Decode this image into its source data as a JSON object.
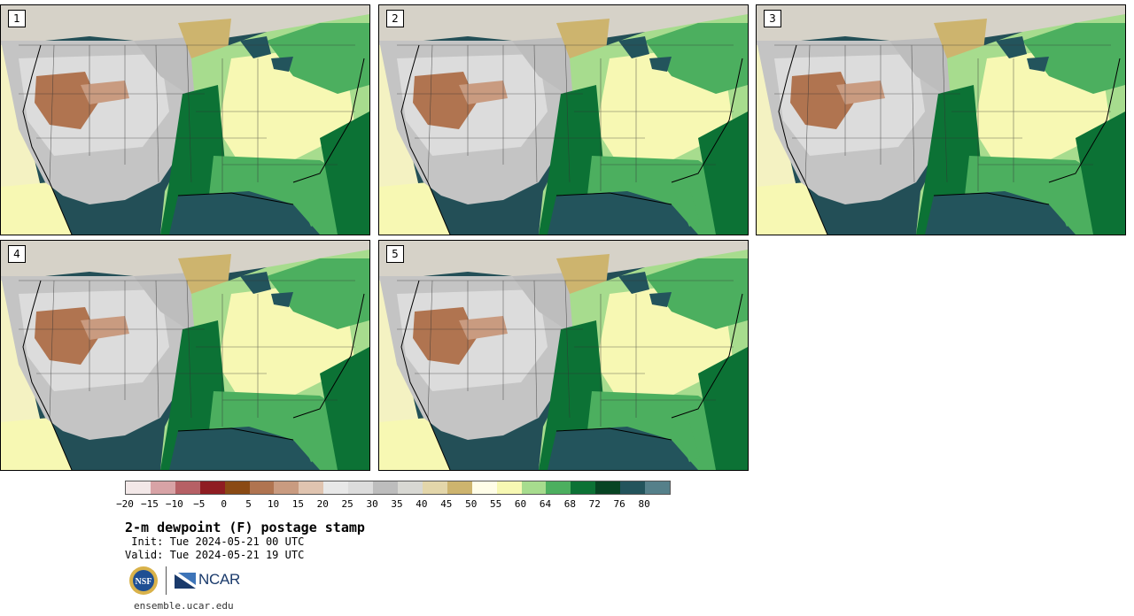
{
  "panels": [
    {
      "label": "1"
    },
    {
      "label": "2"
    },
    {
      "label": "3"
    },
    {
      "label": "4"
    },
    {
      "label": "5"
    }
  ],
  "colorbar": {
    "colors": [
      "#f3e8e8",
      "#d8a3a6",
      "#b66065",
      "#8f1d22",
      "#8a4a14",
      "#b07450",
      "#c99b80",
      "#e0c4b0",
      "#e8e8e8",
      "#dcdcdc",
      "#bdbdbd",
      "#d8d8d3",
      "#e3d6aa",
      "#cdb46e",
      "#fffde8",
      "#f7f8b3",
      "#a7dc8e",
      "#4caf5f",
      "#0c7235",
      "#074423",
      "#23545c",
      "#55808a"
    ],
    "ticks": [
      "−20",
      "−15",
      "−10",
      "−5",
      "0",
      "5",
      "10",
      "15",
      "20",
      "25",
      "30",
      "35",
      "40",
      "45",
      "50",
      "55",
      "60",
      "64",
      "68",
      "72",
      "76",
      "80"
    ]
  },
  "title": "2-m dewpoint (F) postage stamp",
  "init": " Init: Tue 2024-05-21 00 UTC",
  "valid": "Valid: Tue 2024-05-21 19 UTC",
  "logos": {
    "nsf": "NSF",
    "ncar": "NCAR"
  },
  "site": "ensemble.ucar.edu"
}
